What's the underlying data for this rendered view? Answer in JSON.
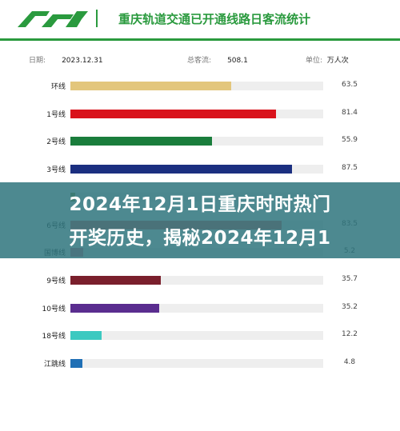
{
  "header": {
    "logo_text": "CRT",
    "title": "重庆轨道交通已开通线路日客流统计"
  },
  "meta": {
    "date_label": "日期:",
    "date_value": "2023.12.31",
    "total_label": "总客流:",
    "total_value": "508.1",
    "unit_label": "单位:",
    "unit_value": "万人次"
  },
  "overlay": {
    "line1": "2024年12月1日重庆时时热门",
    "line2": "开奖历史，揭秘2024年12月1"
  },
  "colors": {
    "brand_green": "#2a9a3e",
    "banner": "#30767e"
  },
  "chart_data": {
    "type": "bar",
    "orientation": "horizontal",
    "categories": [
      "环线",
      "1号线",
      "2号线",
      "3号线",
      "",
      "6号线",
      "国博线",
      "9号线",
      "10号线",
      "18号线",
      "江跳线"
    ],
    "values": [
      63.5,
      81.4,
      55.9,
      87.5,
      null,
      83.5,
      5.2,
      35.7,
      35.2,
      12.2,
      4.8
    ],
    "value_labels": [
      "63.5",
      "81.4",
      "55.9",
      "87.5",
      "",
      "83.5",
      "5.2",
      "35.7",
      "35.2",
      "12.2",
      "4.8"
    ],
    "bar_colors": [
      "#e3c67c",
      "#d9121b",
      "#1a7d3c",
      "#1b2f80",
      "#8a9a3a",
      "#e85c5c",
      "#e56f8c",
      "#7a1f2c",
      "#5a2d8f",
      "#3cc9c0",
      "#1f6fb5"
    ],
    "xlim": [
      0,
      100
    ],
    "grid": false,
    "legend": "none"
  }
}
